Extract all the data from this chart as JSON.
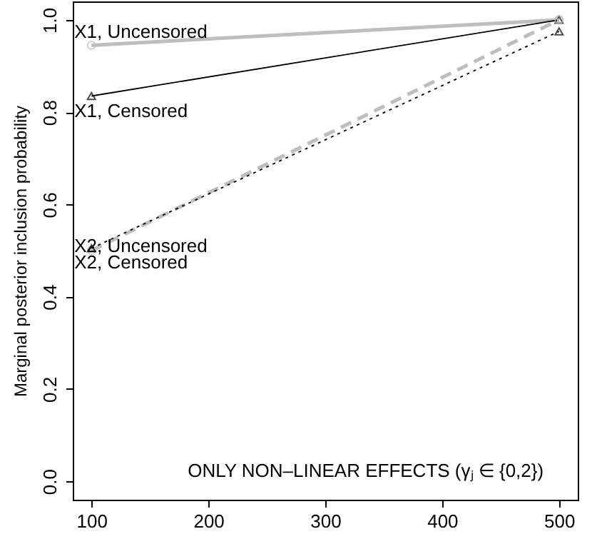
{
  "chart_data": {
    "type": "line",
    "ylabel": "Marginal posterior inclusion probability",
    "x": [
      100,
      500
    ],
    "xlim": [
      84,
      516
    ],
    "xticks": [
      100,
      200,
      300,
      400,
      500
    ],
    "ylim": [
      -0.04,
      1.04
    ],
    "yticks": [
      {
        "value": 0,
        "label": "0.0"
      },
      0.2,
      0.4,
      0.6,
      0.8,
      {
        "value": 1,
        "label": "1.0"
      }
    ],
    "series": [
      {
        "name": "X1, Uncensored",
        "color": "#bebebe",
        "values": [
          0.945,
          1.0
        ],
        "marker": "circle",
        "line_style": "solid"
      },
      {
        "name": "X1, Censored",
        "color": "#000000",
        "values": [
          0.835,
          1.0
        ],
        "marker": "triangle",
        "line_style": "solid"
      },
      {
        "name": "X2, Uncensored",
        "color": "#bebebe",
        "values": [
          0.5,
          1.0
        ],
        "marker": "circle",
        "line_style": "dashed"
      },
      {
        "name": "X2, Censored",
        "color": "#000000",
        "values": [
          0.505,
          0.975
        ],
        "marker": "triangle",
        "line_style": "dotted"
      }
    ],
    "annotations": [
      "ONLY NON–LINEAR EFFECTS (γⱼ ∈ {0,2})"
    ],
    "grid": false
  }
}
